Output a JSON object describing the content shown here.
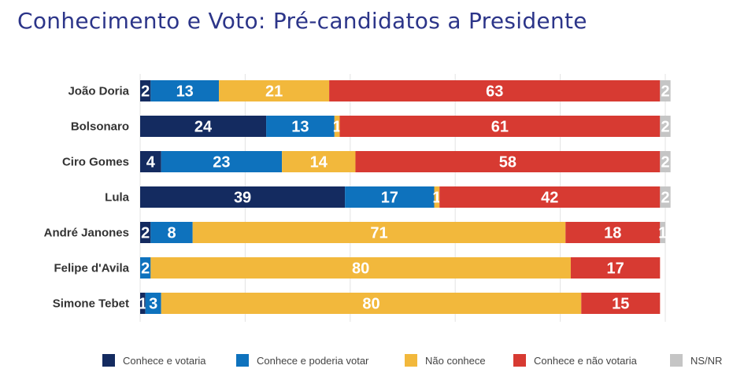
{
  "chart_data": {
    "type": "bar",
    "orientation": "horizontal",
    "stacked": true,
    "title": "Conhecimento e Voto: Pré-candidatos a Presidente",
    "categories": [
      "João Doria",
      "Bolsonaro",
      "Ciro Gomes",
      "Lula",
      "André Janones",
      "Felipe d'Avila",
      "Simone Tebet"
    ],
    "series": [
      {
        "name": "Conhece e votaria",
        "color": "#142b60",
        "values": [
          2,
          24,
          4,
          39,
          2,
          0,
          1
        ]
      },
      {
        "name": "Conhece e poderia votar",
        "color": "#0e72bd",
        "values": [
          13,
          13,
          23,
          17,
          8,
          2,
          3
        ]
      },
      {
        "name": "Não conhece",
        "color": "#f2b83c",
        "values": [
          21,
          1,
          14,
          1,
          71,
          80,
          80
        ]
      },
      {
        "name": "Conhece e não votaria",
        "color": "#d73a32",
        "values": [
          63,
          61,
          58,
          42,
          18,
          17,
          15
        ]
      },
      {
        "name": "NS/NR",
        "color": "#c5c5c5",
        "values": [
          2,
          2,
          2,
          2,
          1,
          0,
          0
        ]
      }
    ],
    "xlim": [
      0,
      100
    ],
    "grid": true,
    "legend": "bottom"
  }
}
